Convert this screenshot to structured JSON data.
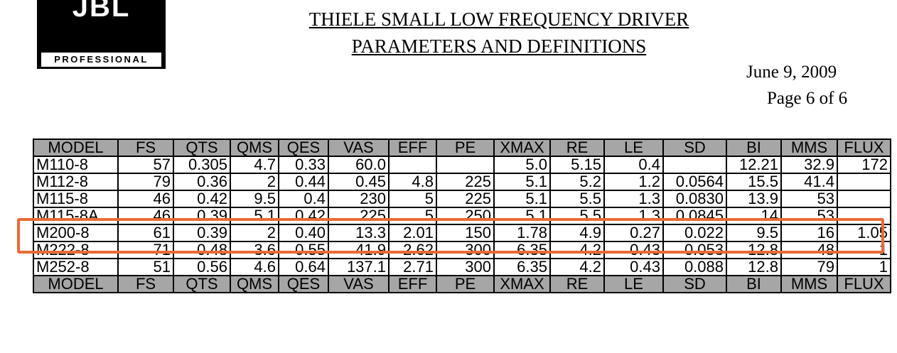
{
  "logo": {
    "mark": "JBL",
    "subtitle": "PROFESSIONAL"
  },
  "header": {
    "title_line1": "THIELE SMALL LOW FREQUENCY DRIVER",
    "title_line2": "PARAMETERS AND DEFINITIONS",
    "date": "June 9, 2009",
    "page": "Page 6 of  6"
  },
  "table": {
    "columns": [
      "MODEL",
      "FS",
      "QTS",
      "QMS",
      "QES",
      "VAS",
      "EFF",
      "PE",
      "XMAX",
      "RE",
      "LE",
      "SD",
      "BI",
      "MMS",
      "FLUX"
    ],
    "rows": [
      [
        "M110-8",
        "57",
        "0.305",
        "4.7",
        "0.33",
        "60.0",
        "",
        "",
        "5.0",
        "5.15",
        "0.4",
        "",
        "12.21",
        "32.9",
        "172"
      ],
      [
        "M112-8",
        "79",
        "0.36",
        "2",
        "0.44",
        "0.45",
        "4.8",
        "225",
        "5.1",
        "5.2",
        "1.2",
        "0.0564",
        "15.5",
        "41.4",
        ""
      ],
      [
        "M115-8",
        "46",
        "0.42",
        "9.5",
        "0.4",
        "230",
        "5",
        "225",
        "5.1",
        "5.5",
        "1.3",
        "0.0830",
        "13.9",
        "53",
        ""
      ],
      [
        "M115-8A",
        "46",
        "0.39",
        "5.1",
        "0.42",
        "225",
        "5",
        "250",
        "5.1",
        "5.5",
        "1.3",
        "0.0845",
        "14",
        "53",
        ""
      ],
      [
        "M200-8",
        "61",
        "0.39",
        "2",
        "0.40",
        "13.3",
        "2.01",
        "150",
        "1.78",
        "4.9",
        "0.27",
        "0.022",
        "9.5",
        "16",
        "1.05"
      ],
      [
        "M222-8",
        "71",
        "0.48",
        "3.6",
        "0.55",
        "41.9",
        "2.62",
        "300",
        "6.35",
        "4.2",
        "0.43",
        "0.053",
        "12.8",
        "48",
        "1"
      ],
      [
        "M252-8",
        "51",
        "0.56",
        "4.6",
        "0.64",
        "137.1",
        "2.71",
        "300",
        "6.35",
        "4.2",
        "0.43",
        "0.088",
        "12.8",
        "79",
        "1"
      ]
    ],
    "highlighted_model": "M115-8A"
  },
  "colors": {
    "header_fill": "#a6a6a6",
    "highlight": "#ea6a33"
  }
}
